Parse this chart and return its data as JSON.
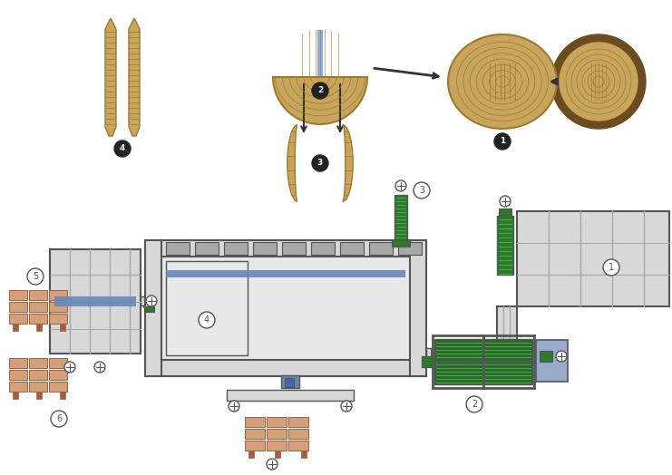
{
  "bg_color": "#ffffff",
  "wood_tan": "#c8a55a",
  "wood_light": "#dfc080",
  "wood_dark_line": "#a07830",
  "wood_mid": "#b89050",
  "bark_outer": "#6b4c1e",
  "bark_inner": "#c8a55a",
  "plank_tan": "#c8a55a",
  "plank_line": "#a07830",
  "machine_fill": "#d8d8d8",
  "machine_dark": "#a8a8a8",
  "machine_outline": "#555555",
  "machine_inner": "#e8e8e8",
  "green_dark": "#2a7a2a",
  "green_light": "#4aaa4a",
  "blue_band": "#6688bb",
  "blue_box": "#99aacc",
  "dark_green_drum": "#2a6a2a",
  "arrow_color": "#333333",
  "label_dark": "#222222",
  "label_white": "#ffffff",
  "pallet_tan": "#d4a07a",
  "pallet_line": "#a06040",
  "pallet_beam": "#a06040"
}
